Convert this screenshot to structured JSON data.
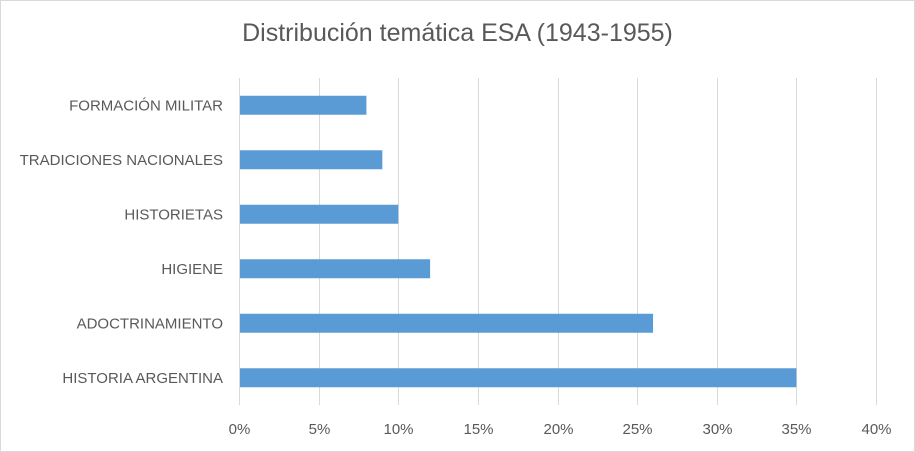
{
  "chart_data": {
    "type": "bar",
    "orientation": "horizontal",
    "title": "Distribución temática ESA (1943-1955)",
    "categories": [
      "FORMACIÓN MILITAR",
      "TRADICIONES NACIONALES",
      "HISTORIETAS",
      "HIGIENE",
      "ADOCTRINAMIENTO",
      "HISTORIA ARGENTINA"
    ],
    "values": [
      8,
      9,
      10,
      12,
      26,
      35
    ],
    "value_unit": "%",
    "xlim": [
      0,
      40
    ],
    "xticks": [
      "0%",
      "5%",
      "10%",
      "15%",
      "20%",
      "25%",
      "30%",
      "35%",
      "40%"
    ],
    "xtick_values": [
      0,
      5,
      10,
      15,
      20,
      25,
      30,
      35,
      40
    ],
    "grid": "vertical",
    "legend": "none",
    "bar_color": "#5b9bd5",
    "grid_color": "#d9d9d9",
    "text_color": "#595959"
  }
}
